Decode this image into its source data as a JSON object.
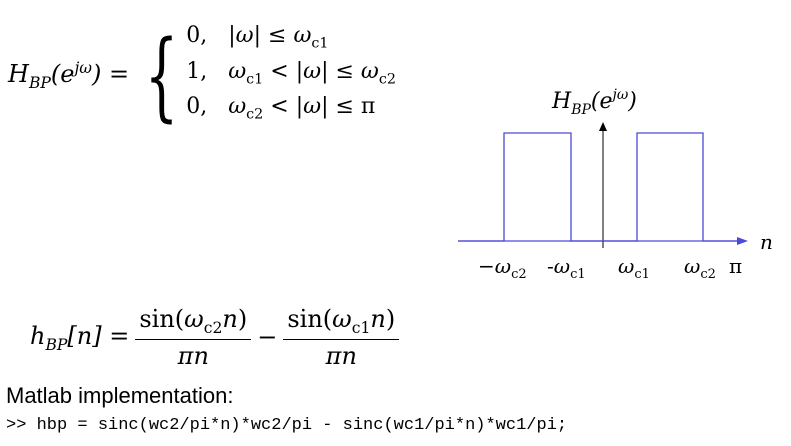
{
  "equation_top": {
    "lhs": "H_BP(e^{jω}) =",
    "cases": [
      {
        "value": "0,",
        "condition": "|ω| ≤ ω_c1"
      },
      {
        "value": "1,",
        "condition": "ω_c1 < |ω| ≤ ω_c2"
      },
      {
        "value": "0,",
        "condition": "ω_c2 < |ω| ≤ π"
      }
    ]
  },
  "plot": {
    "title": "H_BP(e^{jω})",
    "x_axis_label": "n",
    "tick_labels": [
      "−ω_c2",
      "-ω_c1",
      "ω_c1",
      "ω_c2",
      "π"
    ],
    "line_color": "#4a4ad8"
  },
  "equation_bottom": {
    "lhs": "h_BP[n] =",
    "term1_num": "sin(ω_c2 n)",
    "term1_den": "πn",
    "operator": "−",
    "term2_num": "sin(ω_c1 n)",
    "term2_den": "πn"
  },
  "matlab": {
    "heading": "Matlab implementation:",
    "code": ">> hbp =  sinc(wc2/pi*n)*wc2/pi - sinc(wc1/pi*n)*wc1/pi;"
  }
}
